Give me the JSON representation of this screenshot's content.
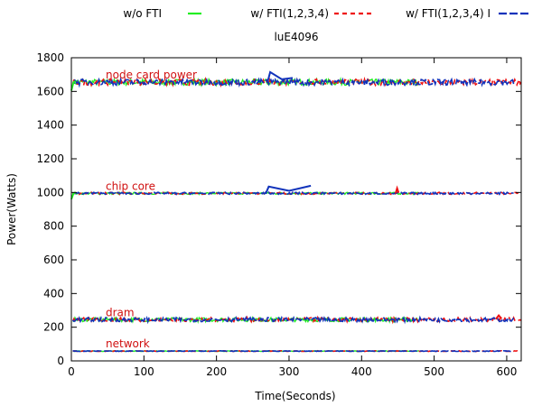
{
  "chart_data": {
    "type": "line",
    "title": "luE4096",
    "xlabel": "Time(Seconds)",
    "ylabel": "Power(Watts)",
    "xlim": [
      0,
      620
    ],
    "ylim": [
      0,
      1800
    ],
    "xticks": [
      0,
      100,
      200,
      300,
      400,
      500,
      600
    ],
    "yticks": [
      0,
      200,
      400,
      600,
      800,
      1000,
      1200,
      1400,
      1600,
      1800
    ],
    "grid": false,
    "legend_position": "top",
    "colors": {
      "wo": "#22ee22",
      "fti": "#ee1111",
      "ftiI": "#1133bb"
    },
    "series": [
      {
        "name": "w/o FTI",
        "color": "#22ee22",
        "dash": "solid",
        "end": 480
      },
      {
        "name": "w/ FTI(1,2,3,4)",
        "color": "#ee1111",
        "dash": "dashed",
        "end": 620
      },
      {
        "name": "w/ FTI(1,2,3,4) I",
        "color": "#1133bb",
        "dash": "longdash",
        "end": 610
      }
    ],
    "components": [
      {
        "label": "node card power",
        "level": 1655,
        "noise": 18
      },
      {
        "label": "chip core",
        "level": 995,
        "noise": 6
      },
      {
        "label": "dram",
        "level": 245,
        "noise": 12
      },
      {
        "label": "network",
        "level": 58,
        "noise": 2
      }
    ],
    "features": [
      {
        "series": 2,
        "component": 0,
        "x": [
          270,
          274,
          290,
          305
        ],
        "y": [
          1650,
          1715,
          1672,
          1680
        ]
      },
      {
        "series": 2,
        "component": 1,
        "x": [
          268,
          272,
          300,
          330
        ],
        "y": [
          995,
          1035,
          1010,
          1040
        ]
      },
      {
        "series": 1,
        "component": 1,
        "x": [
          447,
          449,
          451
        ],
        "y": [
          995,
          1025,
          998
        ]
      },
      {
        "series": 1,
        "component": 2,
        "x": [
          585,
          589,
          593
        ],
        "y": [
          248,
          270,
          250
        ]
      },
      {
        "series": 0,
        "component": 0,
        "x": [
          0,
          3,
          6
        ],
        "y": [
          1605,
          1655,
          1660
        ]
      },
      {
        "series": 0,
        "component": 1,
        "x": [
          0,
          3,
          6
        ],
        "y": [
          960,
          995,
          1000
        ]
      }
    ]
  }
}
